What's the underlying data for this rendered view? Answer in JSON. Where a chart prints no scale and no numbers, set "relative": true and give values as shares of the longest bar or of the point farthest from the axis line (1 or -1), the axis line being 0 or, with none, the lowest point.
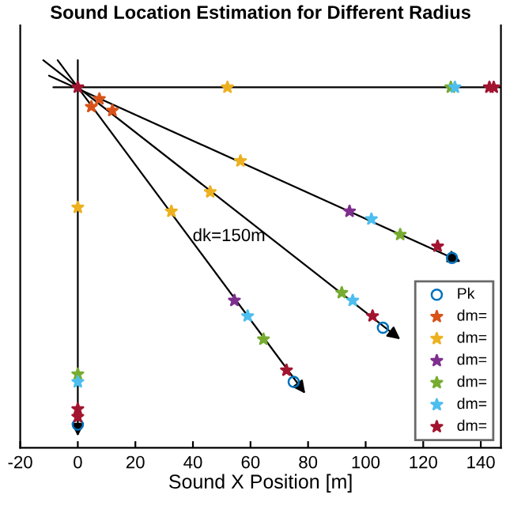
{
  "chart_data": {
    "type": "scatter",
    "title": "Sound Location Estimation for Different Radius",
    "xlabel": "Sound X Position [m]",
    "relative": true,
    "xlim": [
      -20,
      147
    ],
    "xticks": [
      -20,
      0,
      20,
      40,
      60,
      80,
      100,
      120,
      140
    ],
    "grid": false,
    "legend": "bottom right",
    "annotations": [
      "dk=150m"
    ],
    "series": [
      {
        "type": "line",
        "color": "#000000",
        "x": [
          -8.5,
          147
        ],
        "values": [
          0.93,
          0.93
        ]
      },
      {
        "type": "line",
        "color": "#000000",
        "x": [
          0,
          0
        ],
        "values": [
          1.0,
          0.03
        ]
      },
      {
        "type": "line",
        "color": "#000000",
        "x": [
          -10,
          133
        ],
        "values": [
          0.96,
          0.48
        ]
      },
      {
        "type": "line",
        "color": "#000000",
        "x": [
          -12,
          112
        ],
        "values": [
          1.0,
          0.28
        ]
      },
      {
        "type": "line",
        "color": "#000000",
        "x": [
          -7,
          79
        ],
        "values": [
          1.0,
          0.14
        ]
      },
      {
        "name": "Pk",
        "marker": "circle",
        "color": "#0072bd",
        "x": [
          130,
          106,
          75,
          0
        ],
        "values": [
          0.49,
          0.31,
          0.17,
          0.06
        ]
      },
      {
        "name": "dm=",
        "marker": "star",
        "color": "#d95319",
        "x": [
          7.5,
          12,
          4.7
        ],
        "values": [
          0.9,
          0.87,
          0.88
        ]
      },
      {
        "name": "dm=",
        "marker": "star",
        "color": "#edb120",
        "x": [
          52,
          0,
          56.5,
          46,
          32.5
        ],
        "values": [
          0.93,
          0.62,
          0.74,
          0.66,
          0.61
        ]
      },
      {
        "name": "dm=",
        "marker": "star",
        "color": "#7e2f8e",
        "x": [
          94.4,
          54.4
        ],
        "values": [
          0.61,
          0.38
        ]
      },
      {
        "name": "dm=",
        "marker": "star",
        "color": "#77ac30",
        "x": [
          112,
          91.7,
          64.5,
          0,
          129.6
        ],
        "values": [
          0.55,
          0.4,
          0.28,
          0.19,
          0.93
        ]
      },
      {
        "name": "dm=",
        "marker": "star",
        "color": "#4dbeee",
        "x": [
          102,
          95.5,
          59,
          0,
          131
        ],
        "values": [
          0.59,
          0.38,
          0.34,
          0.17,
          0.93
        ]
      },
      {
        "name": "dm=",
        "marker": "star",
        "color": "#a2142f",
        "x": [
          125,
          102.4,
          72.5,
          0,
          0,
          143,
          144.5,
          0
        ],
        "values": [
          0.52,
          0.34,
          0.2,
          0.1,
          0.08,
          0.93,
          0.93,
          0.93
        ]
      }
    ]
  }
}
